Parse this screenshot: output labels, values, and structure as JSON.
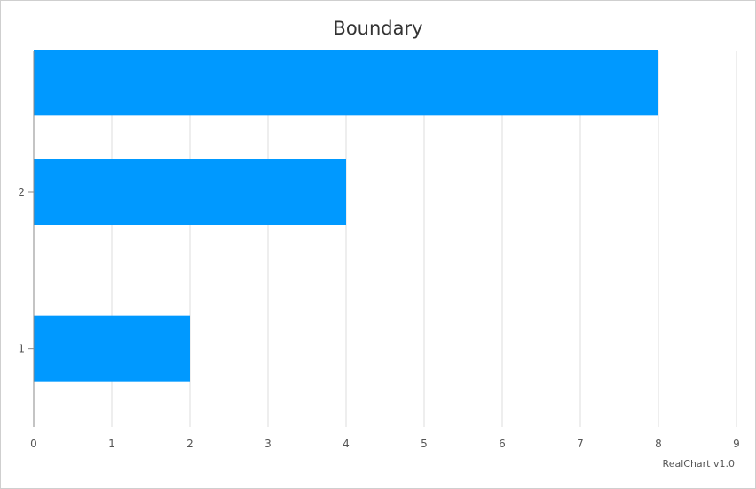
{
  "chart_data": {
    "type": "bar",
    "orientation": "horizontal",
    "title": "Boundary",
    "x_ticks": [
      "0",
      "1",
      "2",
      "3",
      "4",
      "5",
      "6",
      "7",
      "8",
      "9"
    ],
    "xlim": [
      0,
      9
    ],
    "y_ticks": [
      "1",
      "2"
    ],
    "ylim": [
      0.5,
      2.9
    ],
    "grid": true,
    "bar_color": "#0099ff",
    "bars": [
      {
        "y": 2.7,
        "value": 8
      },
      {
        "y": 2.0,
        "value": 4
      },
      {
        "y": 1.0,
        "value": 2
      }
    ]
  },
  "footer": {
    "credit": "RealChart v1.0"
  }
}
